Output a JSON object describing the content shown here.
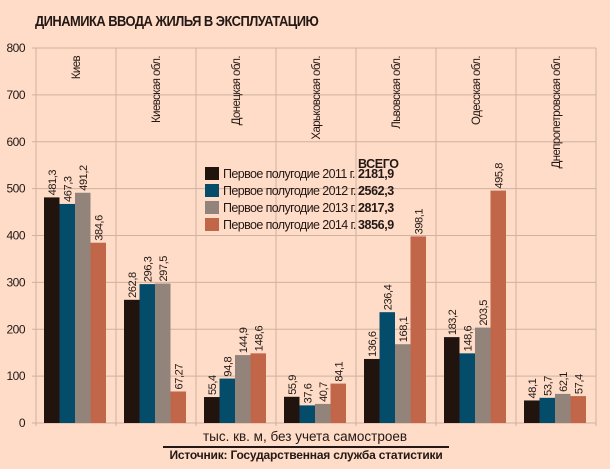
{
  "chart_data": {
    "type": "bar",
    "title": "ДИНАМИКА ВВОДА ЖИЛЬЯ В ЭКСПЛУАТАЦИЮ",
    "xlabel": "",
    "ylabel": "",
    "unit_note": "тыс. кв. м, без учета самостроев",
    "source": "Источник: Государственная служба статистики",
    "ylim": [
      0,
      800
    ],
    "yticks": [
      "0",
      "100",
      "200",
      "300",
      "400",
      "500",
      "600",
      "700",
      "800"
    ],
    "grid": true,
    "legend_position": "center",
    "legend_total_header": "ВСЕГО",
    "categories": [
      "Киев",
      "Киевская обл.",
      "Донецкая обл.",
      "Харьковская обл.",
      "Львовская обл.",
      "Одесская обл.",
      "Днепропетровская обл."
    ],
    "series": [
      {
        "name": "Первое полугодие 2011 г.",
        "total": "2181,9",
        "color": "#21140f",
        "values": [
          481.3,
          262.8,
          55.4,
          55.9,
          136.6,
          183.2,
          48.1
        ],
        "labels": [
          "481,3",
          "262,8",
          "55,4",
          "55,9",
          "136,6",
          "183,2",
          "48,1"
        ]
      },
      {
        "name": "Первое полугодие 2012 г.",
        "total": "2562,3",
        "color": "#044c6a",
        "values": [
          467.3,
          296.3,
          94.8,
          37.6,
          236.4,
          148.6,
          53.7
        ],
        "labels": [
          "467,3",
          "296,3",
          "94,8",
          "37,6",
          "236,4",
          "148,6",
          "53,7"
        ]
      },
      {
        "name": "Первое полугодие 2013 г.",
        "total": "2817,3",
        "color": "#92847a",
        "values": [
          491.2,
          297.5,
          144.9,
          40.7,
          168.1,
          203.5,
          62.1
        ],
        "labels": [
          "491,2",
          "297,5",
          "144,9",
          "40,7",
          "168,1",
          "203,5",
          "62,1"
        ]
      },
      {
        "name": "Первое полугодие 2014 г.",
        "total": "3856,9",
        "color": "#c2664a",
        "values": [
          384.6,
          67.27,
          148.6,
          84.1,
          398.1,
          495.8,
          57.4
        ],
        "labels": [
          "384,6",
          "67,27",
          "148,6",
          "84,1",
          "398,1",
          "495,8",
          "57,4"
        ]
      }
    ]
  }
}
